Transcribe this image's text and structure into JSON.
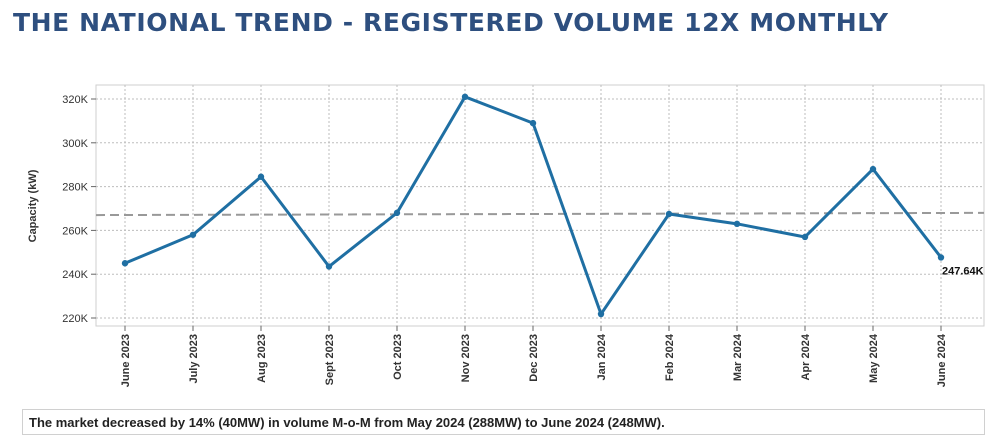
{
  "page": {
    "title": "THE NATIONAL TREND - REGISTERED VOLUME 12X MONTHLY",
    "summary": "The market decreased by 14% (40MW) in volume M-o-M from May 2024 (288MW) to June 2024 (248MW)."
  },
  "chart_data": {
    "type": "line",
    "title": "",
    "xlabel": "",
    "ylabel": "Capacity (kW)",
    "categories": [
      "June 2023",
      "July 2023",
      "Aug 2023",
      "Sept 2023",
      "Oct 2023",
      "Nov 2023",
      "Dec 2023",
      "Jan 2024",
      "Feb 2024",
      "Mar 2024",
      "Apr 2024",
      "May 2024",
      "June 2024"
    ],
    "series": [
      {
        "values": [
          245,
          258,
          284.5,
          243.5,
          268,
          321,
          309,
          221.8,
          267.5,
          263,
          257,
          288,
          247.64
        ],
        "color": "#1f6fa3"
      }
    ],
    "reference_line": {
      "values": [
        267,
        268
      ],
      "color": "#999999",
      "style": "dashed"
    },
    "y_ticks": [
      "220K",
      "240K",
      "260K",
      "280K",
      "300K",
      "320K"
    ],
    "y_tick_values": [
      220,
      240,
      260,
      280,
      300,
      320
    ],
    "ylim": [
      215,
      325
    ],
    "last_point_label": "247.64K",
    "grid": true,
    "legend": "none"
  }
}
